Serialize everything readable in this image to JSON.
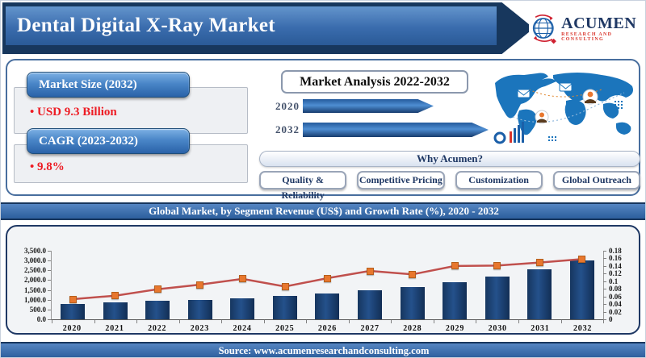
{
  "header": {
    "title": "Dental Digital X-Ray Market",
    "logo": {
      "name": "ACUMEN",
      "tagline": "RESEARCH AND CONSULTING"
    }
  },
  "stats": {
    "market_size": {
      "label": "Market Size (2032)",
      "value": "• USD 9.3 Billion"
    },
    "cagr": {
      "label": "CAGR (2023-2032)",
      "value": "• 9.8%"
    }
  },
  "analysis": {
    "title": "Market Analysis 2022-2032",
    "rows": [
      {
        "year": "2020"
      },
      {
        "year": "2032"
      }
    ]
  },
  "why": {
    "title": "Why Acumen?",
    "buttons": [
      "Quality & Reliability",
      "Competitive Pricing",
      "Customization",
      "Global Outreach"
    ]
  },
  "banner": {
    "text": "Global Market, by Segment Revenue (US$) and Growth Rate (%), 2020 - 2032"
  },
  "footer": {
    "text": "Source: www.acumenresearchandconsulting.com"
  },
  "colors": {
    "navy": "#1f3864",
    "header_blue_top": "#6394cc",
    "header_blue_bottom": "#2a5a97",
    "accent_red_text": "#ed1c24",
    "logo_red": "#d9342b",
    "bar_fill": "#17375e",
    "line_red": "#c0504d",
    "marker_orange": "#e8772e",
    "map_blue": "#1b75bc"
  },
  "chart_data": {
    "type": "bar",
    "title": "Global Market, by Segment Revenue (US$) and Growth Rate (%), 2020 - 2032",
    "categories": [
      "2020",
      "2021",
      "2022",
      "2023",
      "2024",
      "2025",
      "2026",
      "2027",
      "2028",
      "2029",
      "2030",
      "2031",
      "2032"
    ],
    "series": [
      {
        "name": "Segment Revenue (US$)",
        "type": "bar",
        "axis": "left",
        "values": [
          800,
          860,
          930,
          1000,
          1080,
          1180,
          1310,
          1500,
          1660,
          1910,
          2180,
          2550,
          3000
        ]
      },
      {
        "name": "Growth Rate (%)",
        "type": "line",
        "axis": "right",
        "values": [
          0.053,
          0.062,
          0.079,
          0.091,
          0.106,
          0.086,
          0.108,
          0.127,
          0.118,
          0.14,
          0.141,
          0.149,
          0.158
        ]
      }
    ],
    "left_axis": {
      "min": 0,
      "max": 3500,
      "tick_labels": [
        "0.0",
        "500.0",
        "1,000.0",
        "1,500.0",
        "2,000.0",
        "2,500.0",
        "3,000.0",
        "3,500.0"
      ]
    },
    "right_axis": {
      "min": 0,
      "max": 0.18,
      "tick_labels": [
        "0",
        "0.02",
        "0.04",
        "0.06",
        "0.08",
        "0.1",
        "0.12",
        "0.14",
        "0.16",
        "0.18"
      ]
    },
    "grid": false,
    "legend": "none"
  }
}
